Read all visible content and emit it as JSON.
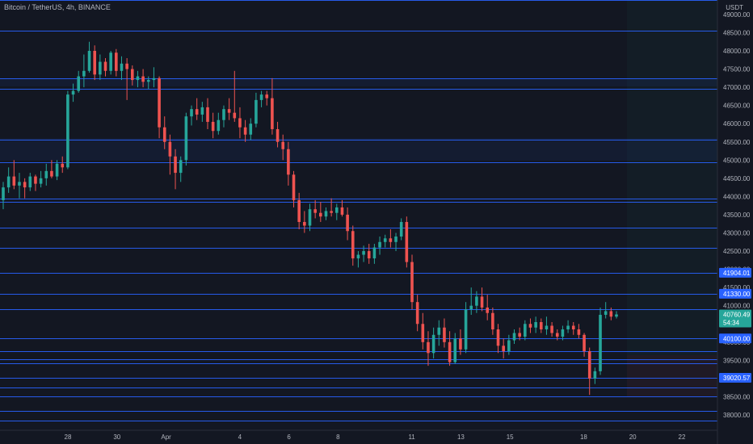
{
  "header": {
    "title": "Bitcoin / TetherUS, 4h, BINANCE",
    "currency": "USDT"
  },
  "colors": {
    "background": "#131722",
    "up": "#26a69a",
    "down": "#ef5350",
    "level_line": "#2962ff",
    "badge": "#2962ff",
    "last_price_badge": "#26a69a",
    "tick_text": "#b2b5be"
  },
  "chart_data": {
    "type": "candlestick",
    "symbol": "Bitcoin / TetherUS",
    "interval": "4h",
    "exchange": "BINANCE",
    "ylim": [
      37800,
      49500
    ],
    "y_ticks": [
      38000,
      38500,
      39000,
      39500,
      40000,
      40500,
      41000,
      41500,
      42000,
      42500,
      43000,
      43500,
      44000,
      44500,
      45000,
      45500,
      46000,
      46500,
      47000,
      47500,
      48000,
      48500,
      49000
    ],
    "x_tick_labels": [
      "28",
      "30",
      "Apr",
      "4",
      "6",
      "8",
      "11",
      "13",
      "15",
      "18",
      "20",
      "22"
    ],
    "x_tick_dates": [
      "Mar 28",
      "Mar 30",
      "Apr 1",
      "Apr 4",
      "Apr 6",
      "Apr 8",
      "Apr 11",
      "Apr 13",
      "Apr 15",
      "Apr 18",
      "Apr 20",
      "Apr 22"
    ],
    "horizontal_levels": [
      49400,
      48550,
      47250,
      46950,
      45550,
      44950,
      43950,
      43850,
      43150,
      42600,
      41904.01,
      41330,
      40900,
      40100,
      39750,
      39520,
      39420,
      39020.57,
      38750,
      38500,
      38100,
      37850
    ],
    "labeled_levels": [
      {
        "value": 41904.01,
        "label": "41904.01"
      },
      {
        "value": 41330.0,
        "label": "41330.00"
      },
      {
        "value": 40100.0,
        "label": "40100.00"
      },
      {
        "value": 39020.57,
        "label": "39020.57"
      }
    ],
    "last_price": {
      "value": 40760.49,
      "label": "40760.49",
      "countdown": "54:34"
    },
    "candles": [
      [
        43900,
        44400,
        43650,
        44250
      ],
      [
        44250,
        44800,
        44100,
        44550
      ],
      [
        44550,
        45000,
        44200,
        44300
      ],
      [
        44300,
        44650,
        43950,
        44400
      ],
      [
        44400,
        44500,
        43950,
        44250
      ],
      [
        44250,
        44650,
        44150,
        44550
      ],
      [
        44550,
        44600,
        44150,
        44350
      ],
      [
        44350,
        44700,
        44250,
        44500
      ],
      [
        44500,
        44900,
        44300,
        44700
      ],
      [
        44700,
        45000,
        44500,
        44550
      ],
      [
        44550,
        45000,
        44450,
        44900
      ],
      [
        44900,
        45100,
        44650,
        44800
      ],
      [
        44800,
        46900,
        44750,
        46800
      ],
      [
        46800,
        47100,
        46600,
        46900
      ],
      [
        46900,
        47450,
        46850,
        47300
      ],
      [
        47300,
        47900,
        47000,
        47450
      ],
      [
        47450,
        48250,
        47400,
        48000
      ],
      [
        48000,
        48150,
        47200,
        47350
      ],
      [
        47350,
        47900,
        47200,
        47700
      ],
      [
        47700,
        47800,
        47300,
        47450
      ],
      [
        47450,
        48000,
        47350,
        47950
      ],
      [
        47950,
        48050,
        47300,
        47450
      ],
      [
        47450,
        47850,
        47200,
        47650
      ],
      [
        47650,
        47800,
        46650,
        47500
      ],
      [
        47500,
        47600,
        47050,
        47200
      ],
      [
        47200,
        47450,
        47000,
        47300
      ],
      [
        47300,
        47500,
        47000,
        47150
      ],
      [
        47150,
        47300,
        46950,
        47200
      ],
      [
        47200,
        47550,
        47000,
        47250
      ],
      [
        47250,
        47300,
        45600,
        45900
      ],
      [
        45900,
        46200,
        45300,
        45500
      ],
      [
        45500,
        45700,
        44600,
        45100
      ],
      [
        45100,
        45300,
        44200,
        44650
      ],
      [
        44650,
        45100,
        44400,
        45000
      ],
      [
        45000,
        46300,
        44850,
        46200
      ],
      [
        46200,
        46500,
        45950,
        46400
      ],
      [
        46400,
        46700,
        46100,
        46250
      ],
      [
        46250,
        46600,
        46050,
        46450
      ],
      [
        46450,
        46700,
        45850,
        46050
      ],
      [
        46050,
        46300,
        45600,
        45800
      ],
      [
        45800,
        46300,
        45700,
        46100
      ],
      [
        46100,
        46500,
        45900,
        46400
      ],
      [
        46400,
        46700,
        46100,
        46300
      ],
      [
        46300,
        47450,
        46050,
        46150
      ],
      [
        46150,
        46450,
        45600,
        45900
      ],
      [
        45900,
        46100,
        45500,
        45700
      ],
      [
        45700,
        46150,
        45550,
        46000
      ],
      [
        46000,
        46850,
        45900,
        46650
      ],
      [
        46650,
        46900,
        46450,
        46800
      ],
      [
        46800,
        46900,
        46500,
        46700
      ],
      [
        46700,
        47250,
        45700,
        45850
      ],
      [
        45850,
        46050,
        45350,
        45500
      ],
      [
        45500,
        45700,
        45000,
        45300
      ],
      [
        45300,
        45500,
        44300,
        44600
      ],
      [
        44600,
        44700,
        43700,
        43900
      ],
      [
        43900,
        44100,
        43100,
        43300
      ],
      [
        43300,
        43600,
        43000,
        43200
      ],
      [
        43200,
        43800,
        43050,
        43650
      ],
      [
        43650,
        43900,
        43400,
        43550
      ],
      [
        43550,
        43850,
        43300,
        43450
      ],
      [
        43450,
        43700,
        43350,
        43600
      ],
      [
        43600,
        43950,
        43450,
        43550
      ],
      [
        43550,
        43800,
        43350,
        43700
      ],
      [
        43700,
        43900,
        43450,
        43500
      ],
      [
        43500,
        43700,
        42800,
        43050
      ],
      [
        43050,
        43200,
        42100,
        42300
      ],
      [
        42300,
        42500,
        42050,
        42400
      ],
      [
        42400,
        42650,
        42200,
        42500
      ],
      [
        42500,
        42700,
        42150,
        42300
      ],
      [
        42300,
        42700,
        42150,
        42600
      ],
      [
        42600,
        42900,
        42400,
        42750
      ],
      [
        42750,
        42950,
        42600,
        42850
      ],
      [
        42850,
        43100,
        42600,
        42750
      ],
      [
        42750,
        43000,
        42500,
        42900
      ],
      [
        42900,
        43400,
        42800,
        43300
      ],
      [
        43300,
        43450,
        42050,
        42200
      ],
      [
        42200,
        42400,
        40900,
        41100
      ],
      [
        41100,
        41300,
        40300,
        40500
      ],
      [
        40500,
        40800,
        39800,
        40000
      ],
      [
        40000,
        40300,
        39350,
        39700
      ],
      [
        39700,
        40400,
        39550,
        40200
      ],
      [
        40200,
        40600,
        39900,
        40400
      ],
      [
        40400,
        40650,
        39850,
        40000
      ],
      [
        40000,
        40300,
        39350,
        39450
      ],
      [
        39450,
        40250,
        39400,
        40100
      ],
      [
        40100,
        40350,
        39650,
        39800
      ],
      [
        39800,
        41100,
        39700,
        40900
      ],
      [
        40900,
        41500,
        40750,
        41000
      ],
      [
        41000,
        41400,
        40800,
        41250
      ],
      [
        41250,
        41500,
        40850,
        40950
      ],
      [
        40950,
        41300,
        40600,
        40800
      ],
      [
        40800,
        40950,
        40200,
        40350
      ],
      [
        40350,
        40500,
        39700,
        39900
      ],
      [
        39900,
        40100,
        39550,
        39750
      ],
      [
        39750,
        40200,
        39650,
        40050
      ],
      [
        40050,
        40350,
        39950,
        40250
      ],
      [
        40250,
        40400,
        40050,
        40150
      ],
      [
        40150,
        40600,
        40050,
        40500
      ],
      [
        40500,
        40650,
        40250,
        40400
      ],
      [
        40400,
        40700,
        40250,
        40550
      ],
      [
        40550,
        40650,
        40250,
        40350
      ],
      [
        40350,
        40700,
        40200,
        40450
      ],
      [
        40450,
        40550,
        40150,
        40250
      ],
      [
        40250,
        40350,
        40050,
        40150
      ],
      [
        40150,
        40450,
        40050,
        40350
      ],
      [
        40350,
        40600,
        40250,
        40450
      ],
      [
        40450,
        40550,
        40200,
        40350
      ],
      [
        40350,
        40500,
        40100,
        40200
      ],
      [
        40200,
        40250,
        39600,
        39750
      ],
      [
        39750,
        39850,
        38550,
        39000
      ],
      [
        39000,
        39300,
        38850,
        39200
      ],
      [
        39200,
        40950,
        39100,
        40750
      ],
      [
        40750,
        41100,
        40650,
        40850
      ],
      [
        40850,
        40950,
        40600,
        40700
      ],
      [
        40700,
        40850,
        40650,
        40760.49
      ]
    ]
  }
}
